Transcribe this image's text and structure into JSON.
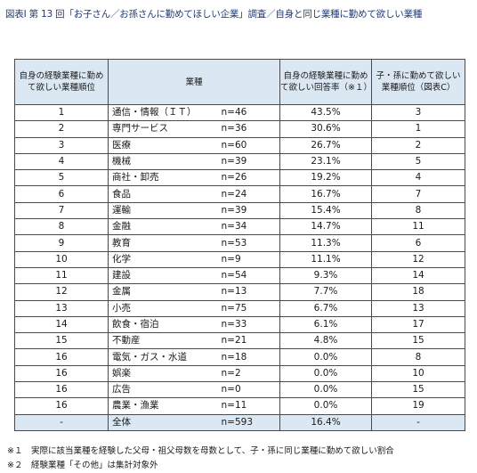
{
  "title": "図表Ⅰ 第 13 回「お子さん／お孫さんに勤めてほしい企業」調査／自身と同じ業種に勤めて欲しい業種",
  "headers": {
    "rank": "自身の経験業種に勤めて欲しい業種順位",
    "industry": "業種",
    "rate": "自身の経験業種に勤めて欲しい回答率（※１）",
    "child_rank": "子・孫に勤めて欲しい業種順位（図表C）"
  },
  "rows": [
    {
      "rank": "1",
      "industry": "通信・情報（ＩＴ）",
      "n": "n=46",
      "rate": "43.5%",
      "child_rank": "3"
    },
    {
      "rank": "2",
      "industry": "専門サービス",
      "n": "n=36",
      "rate": "30.6%",
      "child_rank": "1"
    },
    {
      "rank": "3",
      "industry": "医療",
      "n": "n=60",
      "rate": "26.7%",
      "child_rank": "2"
    },
    {
      "rank": "4",
      "industry": "機械",
      "n": "n=39",
      "rate": "23.1%",
      "child_rank": "5"
    },
    {
      "rank": "5",
      "industry": "商社・卸売",
      "n": "n=26",
      "rate": "19.2%",
      "child_rank": "4"
    },
    {
      "rank": "6",
      "industry": "食品",
      "n": "n=24",
      "rate": "16.7%",
      "child_rank": "7"
    },
    {
      "rank": "7",
      "industry": "運輸",
      "n": "n=39",
      "rate": "15.4%",
      "child_rank": "8"
    },
    {
      "rank": "8",
      "industry": "金融",
      "n": "n=34",
      "rate": "14.7%",
      "child_rank": "11"
    },
    {
      "rank": "9",
      "industry": "教育",
      "n": "n=53",
      "rate": "11.3%",
      "child_rank": "6"
    },
    {
      "rank": "10",
      "industry": "化学",
      "n": "n=9",
      "rate": "11.1%",
      "child_rank": "12"
    },
    {
      "rank": "11",
      "industry": "建設",
      "n": "n=54",
      "rate": "9.3%",
      "child_rank": "14"
    },
    {
      "rank": "12",
      "industry": "金属",
      "n": "n=13",
      "rate": "7.7%",
      "child_rank": "18"
    },
    {
      "rank": "13",
      "industry": "小売",
      "n": "n=75",
      "rate": "6.7%",
      "child_rank": "13"
    },
    {
      "rank": "14",
      "industry": "飲食・宿泊",
      "n": "n=33",
      "rate": "6.1%",
      "child_rank": "17"
    },
    {
      "rank": "15",
      "industry": "不動産",
      "n": "n=21",
      "rate": "4.8%",
      "child_rank": "15"
    },
    {
      "rank": "16",
      "industry": "電気・ガス・水道",
      "n": "n=18",
      "rate": "0.0%",
      "child_rank": "8"
    },
    {
      "rank": "16",
      "industry": "娯楽",
      "n": "n=2",
      "rate": "0.0%",
      "child_rank": "10"
    },
    {
      "rank": "16",
      "industry": "広告",
      "n": "n=0",
      "rate": "0.0%",
      "child_rank": "15"
    },
    {
      "rank": "16",
      "industry": "農業・漁業",
      "n": "n=11",
      "rate": "0.0%",
      "child_rank": "19"
    }
  ],
  "total": {
    "rank": "-",
    "industry": "全体",
    "n": "n=593",
    "rate": "16.4%",
    "child_rank": "-"
  },
  "notes": [
    "※１　実際に該当業種を経験した父母・祖父母数を母数として、子・孫に同じ業種に勤めて欲しい割合",
    "※２　経験業種「その他」は集計対象外"
  ]
}
